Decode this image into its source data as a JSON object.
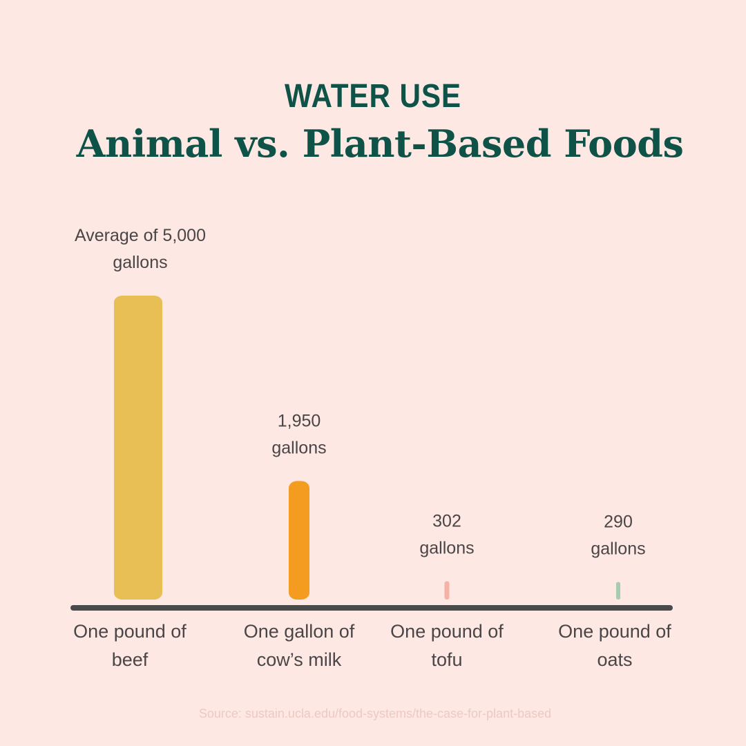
{
  "header": {
    "kicker": "WATER USE",
    "title": "Animal vs. Plant-Based Foods"
  },
  "source": "Source: sustain.ucla.edu/food-systems/the-case-for-plant-based",
  "colors": {
    "background": "#fde8e4",
    "title": "#0f5247",
    "axis": "#4a4a4a",
    "text": "#4a4546"
  },
  "chart_data": {
    "type": "bar",
    "categories": [
      [
        "One pound of",
        "beef"
      ],
      [
        "One gallon of",
        "cow’s milk"
      ],
      [
        "One pound of",
        "tofu"
      ],
      [
        "One pound of",
        "oats"
      ]
    ],
    "values": [
      5000,
      1950,
      302,
      290
    ],
    "value_labels": [
      [
        "Average of 5,000",
        "gallons"
      ],
      [
        "1,950",
        "gallons"
      ],
      [
        "302",
        "gallons"
      ],
      [
        "290",
        "gallons"
      ]
    ],
    "bar_colors": [
      "#e8bf55",
      "#f49c20",
      "#f4b3a4",
      "#a8ccb0"
    ],
    "unit": "gallons",
    "ylim": [
      0,
      5000
    ],
    "grid": false,
    "legend": "none"
  }
}
